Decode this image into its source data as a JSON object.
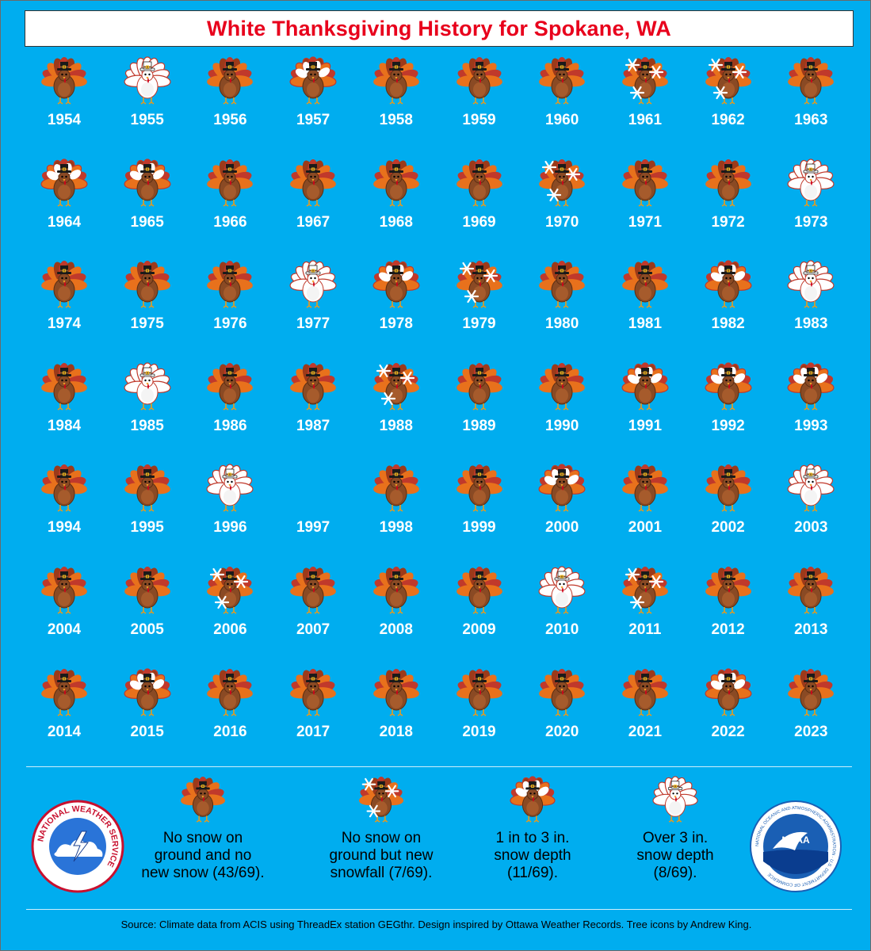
{
  "title": "White Thanksgiving History for Spokane, WA",
  "colors": {
    "background": "#00adef",
    "title_text": "#e8001c",
    "year_text": "#ffffff"
  },
  "category_icons": {
    "none": "turkey-icon",
    "new": "turkey-snowflakes-icon",
    "light": "turkey-light-snow-icon",
    "deep": "turkey-deep-snow-icon"
  },
  "years": [
    {
      "year": "1954",
      "cat": "none"
    },
    {
      "year": "1955",
      "cat": "deep"
    },
    {
      "year": "1956",
      "cat": "none"
    },
    {
      "year": "1957",
      "cat": "light"
    },
    {
      "year": "1958",
      "cat": "none"
    },
    {
      "year": "1959",
      "cat": "none"
    },
    {
      "year": "1960",
      "cat": "none"
    },
    {
      "year": "1961",
      "cat": "new"
    },
    {
      "year": "1962",
      "cat": "new"
    },
    {
      "year": "1963",
      "cat": "none"
    },
    {
      "year": "1964",
      "cat": "light"
    },
    {
      "year": "1965",
      "cat": "light"
    },
    {
      "year": "1966",
      "cat": "none"
    },
    {
      "year": "1967",
      "cat": "none"
    },
    {
      "year": "1968",
      "cat": "none"
    },
    {
      "year": "1969",
      "cat": "none"
    },
    {
      "year": "1970",
      "cat": "new"
    },
    {
      "year": "1971",
      "cat": "none"
    },
    {
      "year": "1972",
      "cat": "none"
    },
    {
      "year": "1973",
      "cat": "deep"
    },
    {
      "year": "1974",
      "cat": "none"
    },
    {
      "year": "1975",
      "cat": "none"
    },
    {
      "year": "1976",
      "cat": "none"
    },
    {
      "year": "1977",
      "cat": "deep"
    },
    {
      "year": "1978",
      "cat": "light"
    },
    {
      "year": "1979",
      "cat": "new"
    },
    {
      "year": "1980",
      "cat": "none"
    },
    {
      "year": "1981",
      "cat": "none"
    },
    {
      "year": "1982",
      "cat": "light"
    },
    {
      "year": "1983",
      "cat": "deep"
    },
    {
      "year": "1984",
      "cat": "none"
    },
    {
      "year": "1985",
      "cat": "deep"
    },
    {
      "year": "1986",
      "cat": "none"
    },
    {
      "year": "1987",
      "cat": "none"
    },
    {
      "year": "1988",
      "cat": "new"
    },
    {
      "year": "1989",
      "cat": "none"
    },
    {
      "year": "1990",
      "cat": "none"
    },
    {
      "year": "1991",
      "cat": "light"
    },
    {
      "year": "1992",
      "cat": "light"
    },
    {
      "year": "1993",
      "cat": "light"
    },
    {
      "year": "1994",
      "cat": "none"
    },
    {
      "year": "1995",
      "cat": "none"
    },
    {
      "year": "1996",
      "cat": "deep"
    },
    {
      "year": "1997",
      "cat": "missing"
    },
    {
      "year": "1998",
      "cat": "none"
    },
    {
      "year": "1999",
      "cat": "none"
    },
    {
      "year": "2000",
      "cat": "light"
    },
    {
      "year": "2001",
      "cat": "none"
    },
    {
      "year": "2002",
      "cat": "none"
    },
    {
      "year": "2003",
      "cat": "deep"
    },
    {
      "year": "2004",
      "cat": "none"
    },
    {
      "year": "2005",
      "cat": "none"
    },
    {
      "year": "2006",
      "cat": "new"
    },
    {
      "year": "2007",
      "cat": "none"
    },
    {
      "year": "2008",
      "cat": "none"
    },
    {
      "year": "2009",
      "cat": "none"
    },
    {
      "year": "2010",
      "cat": "deep"
    },
    {
      "year": "2011",
      "cat": "new"
    },
    {
      "year": "2012",
      "cat": "none"
    },
    {
      "year": "2013",
      "cat": "none"
    },
    {
      "year": "2014",
      "cat": "none"
    },
    {
      "year": "2015",
      "cat": "light"
    },
    {
      "year": "2016",
      "cat": "none"
    },
    {
      "year": "2017",
      "cat": "none"
    },
    {
      "year": "2018",
      "cat": "none"
    },
    {
      "year": "2019",
      "cat": "none"
    },
    {
      "year": "2020",
      "cat": "none"
    },
    {
      "year": "2021",
      "cat": "none"
    },
    {
      "year": "2022",
      "cat": "light"
    },
    {
      "year": "2023",
      "cat": "none"
    }
  ],
  "legend": [
    {
      "cat": "none",
      "lines": [
        "No snow on",
        "ground and no",
        "new snow (43/69)."
      ]
    },
    {
      "cat": "new",
      "lines": [
        "No snow on",
        "ground but new",
        "snowfall (7/69)."
      ]
    },
    {
      "cat": "light",
      "lines": [
        "1 in to 3 in.",
        "snow depth",
        "(11/69)."
      ]
    },
    {
      "cat": "deep",
      "lines": [
        "Over 3 in.",
        "snow depth",
        "(8/69)."
      ]
    }
  ],
  "logos": {
    "nws_text": "NATIONAL WEATHER SERVICE",
    "noaa_text": "NOAA",
    "noaa_ring_text": "NATIONAL OCEANIC AND ATMOSPHERIC ADMINISTRATION · U.S. DEPARTMENT OF COMMERCE"
  },
  "footer": "Source: Climate data from ACIS using ThreadEx station GEGthr. Design inspired by Ottawa Weather Records. Tree icons by Andrew King."
}
